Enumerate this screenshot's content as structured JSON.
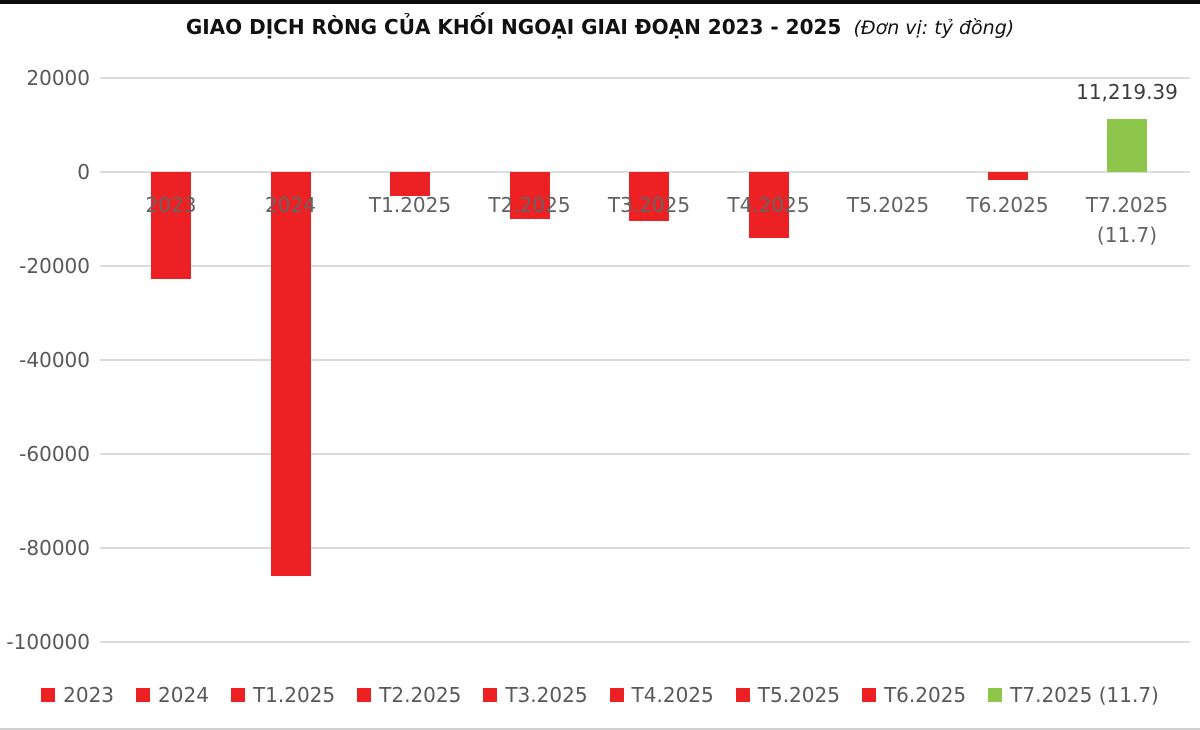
{
  "title": {
    "main": "GIAO DỊCH RÒNG CỦA KHỐI NGOẠI GIAI ĐOẠN 2023 - 2025",
    "unit": "(Đơn vị: tỷ đồng)"
  },
  "chart_data": {
    "type": "bar",
    "title": "GIAO DỊCH RÒNG CỦA KHỐI NGOẠI GIAI ĐOẠN 2023 - 2025",
    "subtitle": "(Đơn vị: tỷ đồng)",
    "unit": "tỷ đồng",
    "categories": [
      "2023",
      "2024",
      "T1.2025",
      "T2.2025",
      "T3.2025",
      "T4.2025",
      "T5.2025",
      "T6.2025",
      "T7.2025 (11.7)"
    ],
    "category_label_lines": [
      [
        "2023"
      ],
      [
        "2024"
      ],
      [
        "T1.2025"
      ],
      [
        "T2.2025"
      ],
      [
        "T3.2025"
      ],
      [
        "T4.2025"
      ],
      [
        "T5.2025"
      ],
      [
        "T6.2025"
      ],
      [
        "T7.2025",
        "(11.7)"
      ]
    ],
    "values": [
      -22800,
      -86000,
      -5200,
      -10000,
      -10500,
      -14000,
      0,
      -1700,
      11219.39
    ],
    "bar_colors": [
      "#ED2124",
      "#ED2124",
      "#ED2124",
      "#ED2124",
      "#ED2124",
      "#ED2124",
      "#ED2124",
      "#ED2124",
      "#8EC64C"
    ],
    "data_labels": [
      null,
      null,
      null,
      null,
      null,
      null,
      null,
      null,
      "11,219.39"
    ],
    "yticks": [
      20000,
      0,
      -20000,
      -40000,
      -60000,
      -80000,
      -100000
    ],
    "ytick_labels": [
      "20000",
      "0",
      "-20000",
      "-40000",
      "-60000",
      "-80000",
      "-100000"
    ],
    "ylim": [
      -100000,
      20000
    ],
    "xlabel": "",
    "ylabel": "",
    "grid": true,
    "legend_position": "bottom",
    "legend_labels": [
      "2023",
      "2024",
      "T1.2025",
      "T2.2025",
      "T3.2025",
      "T4.2025",
      "T5.2025",
      "T6.2025",
      "T7.2025 (11.7)"
    ]
  },
  "colors": {
    "negative_bar": "#ED2124",
    "positive_bar": "#8EC64C",
    "gridline": "#DCDCDC",
    "axis_text": "#595959",
    "category_text": "#636363",
    "value_label_text": "#3D3D3D",
    "title_text": "#111111",
    "top_border": "#0B0B0B",
    "bottom_border": "#CFCFCF"
  }
}
